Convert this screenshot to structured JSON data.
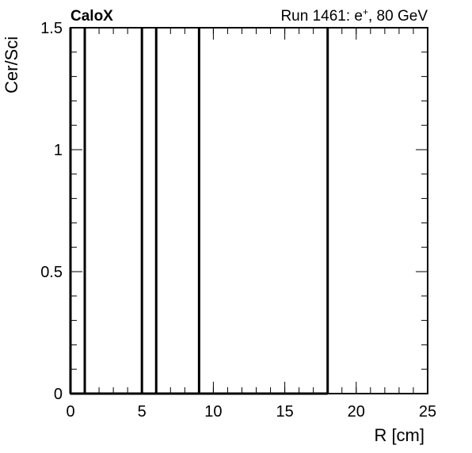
{
  "chart_data": {
    "type": "line",
    "brand_label": "CaloX",
    "run_label": "Run 1461: e",
    "run_superscript": "+",
    "run_suffix": ", 80 GeV",
    "xlabel": "R [cm]",
    "ylabel": "Cer/Sci",
    "xlim": [
      0,
      25
    ],
    "ylim": [
      0,
      1.5
    ],
    "x_ticks": [
      {
        "value": 0,
        "label": "0"
      },
      {
        "value": 5,
        "label": "5"
      },
      {
        "value": 10,
        "label": "10"
      },
      {
        "value": 15,
        "label": "15"
      },
      {
        "value": 20,
        "label": "20"
      },
      {
        "value": 25,
        "label": "25"
      }
    ],
    "y_ticks": [
      {
        "value": 0,
        "label": "0"
      },
      {
        "value": 0.5,
        "label": "0.5"
      },
      {
        "value": 1,
        "label": "1"
      },
      {
        "value": 1.5,
        "label": "1.5"
      }
    ],
    "x_minor_step": 1,
    "y_minor_step": 0.1,
    "bin_edges": [
      0,
      1,
      5,
      6,
      9,
      18
    ],
    "bin_values": [
      0,
      0,
      0,
      0,
      0
    ],
    "line_color": "#000000",
    "grid": false
  }
}
